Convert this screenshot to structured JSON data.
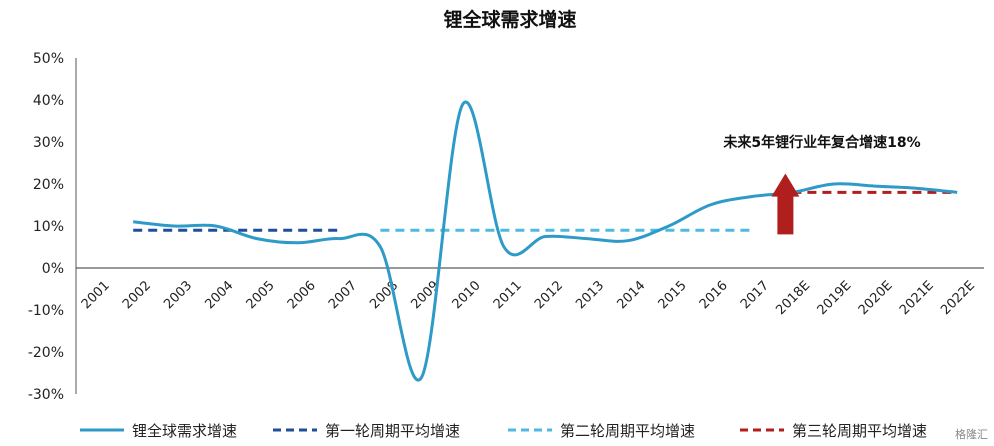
{
  "chart_data": {
    "type": "line",
    "title": "锂全球需求增速",
    "categories": [
      "2001",
      "2002",
      "2003",
      "2004",
      "2005",
      "2006",
      "2007",
      "2008",
      "2009",
      "2010",
      "2011",
      "2012",
      "2013",
      "2014",
      "2015",
      "2016",
      "2017",
      "2018E",
      "2019E",
      "2020E",
      "2021E",
      "2022E"
    ],
    "yticks": [
      "50%",
      "40%",
      "30%",
      "20%",
      "10%",
      "0%",
      "-10%",
      "-20%",
      "-30%"
    ],
    "ylim": [
      -30,
      50
    ],
    "series": [
      {
        "name": "锂全球需求增速",
        "color": "#2E9AC8",
        "style": "solid",
        "points": [
          {
            "x": "2002",
            "y": 11
          },
          {
            "x": "2003",
            "y": 10
          },
          {
            "x": "2004",
            "y": 10
          },
          {
            "x": "2005",
            "y": 7
          },
          {
            "x": "2006",
            "y": 6
          },
          {
            "x": "2007",
            "y": 7
          },
          {
            "x": "2008",
            "y": 5
          },
          {
            "x": "2009",
            "y": -26
          },
          {
            "x": "2010",
            "y": 39
          },
          {
            "x": "2011",
            "y": 5
          },
          {
            "x": "2012",
            "y": 7.5
          },
          {
            "x": "2013",
            "y": 7
          },
          {
            "x": "2014",
            "y": 6.5
          },
          {
            "x": "2015",
            "y": 10
          },
          {
            "x": "2016",
            "y": 15
          },
          {
            "x": "2017",
            "y": 17
          },
          {
            "x": "2018E",
            "y": 18
          },
          {
            "x": "2019E",
            "y": 20
          },
          {
            "x": "2020E",
            "y": 19.5
          },
          {
            "x": "2021E",
            "y": 19
          },
          {
            "x": "2022E",
            "y": 18
          }
        ]
      },
      {
        "name": "第一轮周期平均增速",
        "color": "#1F4E9A",
        "style": "dashed",
        "from": "2002",
        "to": "2007",
        "value": 9
      },
      {
        "name": "第二轮周期平均增速",
        "color": "#4FB9E0",
        "style": "dashed",
        "from": "2008",
        "to": "2017",
        "value": 9
      },
      {
        "name": "第三轮周期平均增速",
        "color": "#B01E1E",
        "style": "dashed",
        "from": "2018E",
        "to": "2022E",
        "value": 18
      }
    ],
    "annotation": {
      "text": "未来5年锂行业年复合增速18%",
      "arrow_color": "#B01E1E"
    },
    "legend_position": "bottom"
  },
  "watermark": "格隆汇"
}
